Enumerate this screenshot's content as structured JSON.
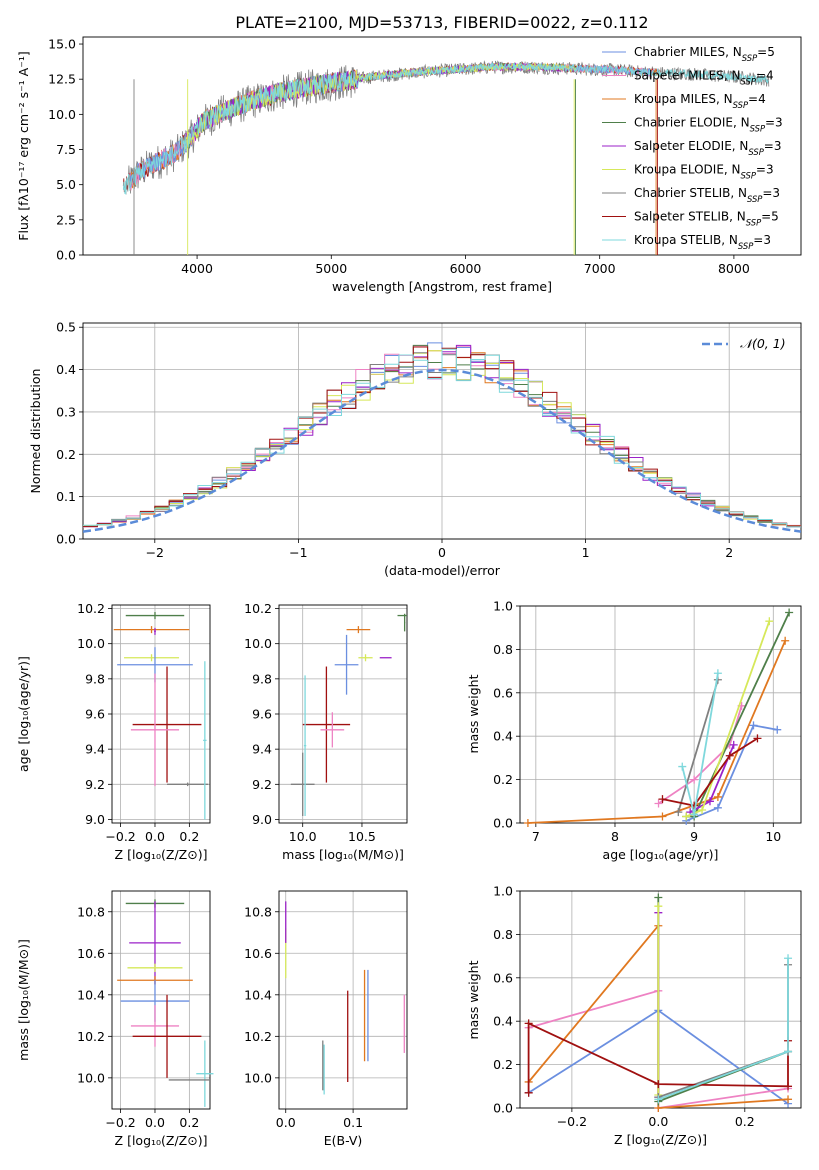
{
  "figure_title": "PLATE=2100, MJD=53713, FIBERID=0022, z=0.112",
  "colors": {
    "chabrier_miles": "#6b8fe0",
    "salpeter_miles": "#ee82c3",
    "kroupa_miles": "#e07820",
    "chabrier_elodie": "#4f7f4a",
    "salpeter_elodie": "#9b22c8",
    "kroupa_elodie": "#d6e85a",
    "chabrier_stelib": "#808080",
    "salpeter_stelib": "#a01010",
    "kroupa_stelib": "#7fd8dc",
    "normal_curve": "#5b8bd8"
  },
  "chart_data": [
    {
      "type": "line",
      "title": "PLATE=2100, MJD=53713, FIBERID=0022, z=0.112",
      "xlabel": "wavelength [Angstrom, rest frame]",
      "ylabel": "Flux [fλ10⁻¹⁷ erg cm⁻² s⁻¹ A⁻¹]",
      "xlim": [
        3150,
        8500
      ],
      "ylim": [
        0,
        15.5
      ],
      "xticks": [
        "4000",
        "5000",
        "6000",
        "7000",
        "8000"
      ],
      "yticks": [
        "0.0",
        "2.5",
        "5.0",
        "7.5",
        "10.0",
        "12.5",
        "15.0"
      ],
      "grid": false,
      "legend_position": "right",
      "continuum_x": [
        3450,
        3550,
        3650,
        3750,
        3850,
        3950,
        4050,
        4200,
        4400,
        4600,
        4800,
        5000,
        5300,
        5600,
        5900,
        6200,
        6500,
        6800,
        7100,
        7400,
        7700,
        8000,
        8250
      ],
      "continuum_y": [
        4.8,
        5.8,
        6.5,
        6.9,
        7.4,
        8.4,
        9.6,
        10.3,
        11.0,
        11.6,
        12.0,
        12.3,
        12.7,
        13.0,
        13.2,
        13.4,
        13.4,
        13.3,
        13.2,
        13.0,
        12.9,
        12.7,
        12.5
      ],
      "series": [
        {
          "name": "Chabrier MILES, N$_{SSP}$=5",
          "key": "chabrier_miles"
        },
        {
          "name": "Salpeter MILES, N$_{SSP}$=4",
          "key": "salpeter_miles"
        },
        {
          "name": "Kroupa MILES, N$_{SSP}$=4",
          "key": "kroupa_miles"
        },
        {
          "name": "Chabrier ELODIE, N$_{SSP}$=3",
          "key": "chabrier_elodie"
        },
        {
          "name": "Salpeter ELODIE, N$_{SSP}$=3",
          "key": "salpeter_elodie"
        },
        {
          "name": "Kroupa ELODIE, N$_{SSP}$=3",
          "key": "kroupa_elodie"
        },
        {
          "name": "Chabrier STELIB, N$_{SSP}$=3",
          "key": "chabrier_stelib"
        },
        {
          "name": "Salpeter STELIB, N$_{SSP}$=5",
          "key": "salpeter_stelib"
        },
        {
          "name": "Kroupa STELIB, N$_{SSP}$=3",
          "key": "kroupa_stelib"
        }
      ]
    },
    {
      "type": "line",
      "xlabel": "(data-model)/error",
      "ylabel": "Normed distribution",
      "xlim": [
        -2.5,
        2.5
      ],
      "ylim": [
        0,
        0.51
      ],
      "xticks": [
        "−2",
        "−1",
        "0",
        "1",
        "2"
      ],
      "yticks": [
        "0.0",
        "0.1",
        "0.2",
        "0.3",
        "0.4",
        "0.5"
      ],
      "grid": true,
      "legend_position": "top-right",
      "normal_label": "𝒩(0, 1)",
      "bin_width": 0.1
    },
    {
      "type": "scatter",
      "xlabel": "Z [log₁₀(Z/Z⊙)]",
      "ylabel": "age  [log₁₀(age/yr)]",
      "xlim": [
        -0.25,
        0.32
      ],
      "ylim": [
        8.98,
        10.22
      ],
      "xticks": [
        "−0.2",
        "0.0",
        "0.2"
      ],
      "yticks": [
        "9.0",
        "9.2",
        "9.4",
        "9.6",
        "9.8",
        "10.0",
        "10.2"
      ],
      "grid": true,
      "points": [
        {
          "key": "chabrier_elodie",
          "x": 0.0,
          "xerr": 0.17,
          "y": 10.16,
          "yerr": 0.02
        },
        {
          "key": "kroupa_miles",
          "x": -0.02,
          "xerr": 0.22,
          "y": 10.08,
          "yerr": 0.02
        },
        {
          "key": "kroupa_elodie",
          "x": -0.02,
          "xerr": 0.16,
          "y": 9.92,
          "yerr": 0.02
        },
        {
          "key": "chabrier_miles",
          "x": 0.0,
          "xerr": 0.22,
          "y": 9.88,
          "yerr": 0.1
        },
        {
          "key": "salpeter_stelib",
          "x": 0.07,
          "xerr": 0.2,
          "y": 9.54,
          "yerr": 0.33
        },
        {
          "key": "salpeter_miles",
          "x": 0.0,
          "xerr": 0.14,
          "y": 9.51,
          "yerr": 0.32
        },
        {
          "key": "chabrier_stelib",
          "x": 0.19,
          "xerr": 0.12,
          "y": 9.2,
          "yerr": 0.01
        },
        {
          "key": "kroupa_stelib",
          "x": 0.29,
          "xerr": 0.01,
          "y": 9.45,
          "yerr": 0.45
        },
        {
          "key": "salpeter_elodie",
          "x": 0.0,
          "xerr": 0.005,
          "y": 10.07,
          "yerr": 0.02
        }
      ]
    },
    {
      "type": "scatter",
      "xlabel": "mass [log₁₀(M/M⊙)]",
      "ylabel": "",
      "xlim": [
        9.8,
        10.88
      ],
      "ylim": [
        8.98,
        10.22
      ],
      "xticks": [
        "10.0",
        "10.5"
      ],
      "yticks": [
        "9.0",
        "9.2",
        "9.4",
        "9.6",
        "9.8",
        "10.0",
        "10.2"
      ],
      "grid": true,
      "points": [
        {
          "key": "chabrier_elodie",
          "x": 10.84,
          "xerr": 0.04,
          "y": 10.16,
          "yerr": 0.0
        },
        {
          "key": "chabrier_elodie",
          "x": 10.86,
          "xerr": 0.005,
          "y": 10.12,
          "yerr": 0.05
        },
        {
          "key": "kroupa_miles",
          "x": 10.47,
          "xerr": 0.1,
          "y": 10.08,
          "yerr": 0.02
        },
        {
          "key": "kroupa_elodie",
          "x": 10.53,
          "xerr": 0.06,
          "y": 9.92,
          "yerr": 0.02
        },
        {
          "key": "salpeter_elodie",
          "x": 10.7,
          "xerr": 0.05,
          "y": 9.92,
          "yerr": 0.0
        },
        {
          "key": "chabrier_miles",
          "x": 10.37,
          "xerr": 0.1,
          "y": 9.88,
          "yerr": 0.17
        },
        {
          "key": "salpeter_stelib",
          "x": 10.2,
          "xerr": 0.2,
          "y": 9.54,
          "yerr": 0.33
        },
        {
          "key": "salpeter_miles",
          "x": 10.25,
          "xerr": 0.1,
          "y": 9.51,
          "yerr": 0.1
        },
        {
          "key": "chabrier_stelib",
          "x": 10.0,
          "xerr": 0.1,
          "y": 9.2,
          "yerr": 0.18
        },
        {
          "key": "kroupa_stelib",
          "x": 10.02,
          "xerr": 0.01,
          "y": 9.42,
          "yerr": 0.4
        }
      ]
    },
    {
      "type": "line",
      "xlabel": "age  [log₁₀(age/yr)]",
      "ylabel": "mass weight",
      "xlim": [
        6.8,
        10.35
      ],
      "ylim": [
        0,
        1.0
      ],
      "xticks": [
        "7",
        "8",
        "9",
        "10"
      ],
      "yticks": [
        "0.0",
        "0.2",
        "0.4",
        "0.6",
        "0.8",
        "1.0"
      ],
      "grid": true,
      "series": [
        {
          "key": "chabrier_miles",
          "x": [
            8.9,
            9.3,
            9.75,
            10.05
          ],
          "y": [
            0.01,
            0.07,
            0.45,
            0.43
          ]
        },
        {
          "key": "salpeter_miles",
          "x": [
            8.55,
            9.0,
            9.45,
            9.6
          ],
          "y": [
            0.09,
            0.2,
            0.36,
            0.54
          ]
        },
        {
          "key": "kroupa_miles",
          "x": [
            6.9,
            8.6,
            9.3,
            10.15
          ],
          "y": [
            0.0,
            0.03,
            0.12,
            0.84
          ]
        },
        {
          "key": "chabrier_elodie",
          "x": [
            8.9,
            9.0,
            10.2
          ],
          "y": [
            0.03,
            0.03,
            0.97
          ]
        },
        {
          "key": "salpeter_elodie",
          "x": [
            8.95,
            9.2,
            9.5
          ],
          "y": [
            0.05,
            0.1,
            0.36
          ]
        },
        {
          "key": "kroupa_elodie",
          "x": [
            8.9,
            9.1,
            9.95
          ],
          "y": [
            0.03,
            0.06,
            0.93
          ]
        },
        {
          "key": "chabrier_stelib",
          "x": [
            8.8,
            9.3
          ],
          "y": [
            0.05,
            0.66
          ]
        },
        {
          "key": "salpeter_stelib",
          "x": [
            8.6,
            9.0,
            9.45,
            9.8
          ],
          "y": [
            0.11,
            0.08,
            0.31,
            0.39
          ]
        },
        {
          "key": "kroupa_stelib",
          "x": [
            8.85,
            9.0,
            9.3
          ],
          "y": [
            0.26,
            0.04,
            0.69
          ]
        }
      ]
    },
    {
      "type": "scatter",
      "xlabel": "Z [log₁₀(Z/Z⊙)]",
      "ylabel": "mass [log₁₀(M/M⊙)]",
      "xlim": [
        -0.25,
        0.32
      ],
      "ylim": [
        9.85,
        10.9
      ],
      "xticks": [
        "−0.2",
        "0.0",
        "0.2"
      ],
      "yticks": [
        "10.0",
        "10.2",
        "10.4",
        "10.6",
        "10.8"
      ],
      "grid": true,
      "points": [
        {
          "key": "chabrier_elodie",
          "x": 0.0,
          "xerr": 0.17,
          "y": 10.84,
          "yerr": 0.02
        },
        {
          "key": "salpeter_elodie",
          "x": 0.0,
          "xerr": 0.15,
          "y": 10.65,
          "yerr": 0.2
        },
        {
          "key": "kroupa_elodie",
          "x": 0.0,
          "xerr": 0.16,
          "y": 10.53,
          "yerr": 0.02
        },
        {
          "key": "kroupa_miles",
          "x": 0.0,
          "xerr": 0.22,
          "y": 10.47,
          "yerr": 0.02
        },
        {
          "key": "chabrier_miles",
          "x": 0.0,
          "xerr": 0.2,
          "y": 10.37,
          "yerr": 0.1
        },
        {
          "key": "salpeter_miles",
          "x": 0.0,
          "xerr": 0.14,
          "y": 10.25,
          "yerr": 0.1
        },
        {
          "key": "salpeter_stelib",
          "x": 0.07,
          "xerr": 0.2,
          "y": 10.2,
          "yerr": 0.2
        },
        {
          "key": "kroupa_stelib",
          "x": 0.29,
          "xerr": 0.05,
          "y": 10.02,
          "yerr": 0.16
        },
        {
          "key": "chabrier_stelib",
          "x": 0.2,
          "xerr": 0.12,
          "y": 9.99,
          "yerr": 0.0
        }
      ]
    },
    {
      "type": "scatter",
      "xlabel": "E(B-V)",
      "ylabel": "",
      "xlim": [
        -0.01,
        0.18
      ],
      "ylim": [
        9.85,
        10.9
      ],
      "xticks": [
        "0.0",
        "0.1"
      ],
      "yticks": [
        "10.0",
        "10.2",
        "10.4",
        "10.6",
        "10.8"
      ],
      "grid": true,
      "points": [
        {
          "key": "kroupa_elodie",
          "x": 0.0,
          "y": 10.6,
          "yerr": 0.12
        },
        {
          "key": "salpeter_elodie",
          "x": 0.0,
          "y": 10.75,
          "yerr": 0.1
        },
        {
          "key": "chabrier_stelib",
          "x": 0.055,
          "y": 10.06,
          "yerr": 0.12
        },
        {
          "key": "kroupa_stelib",
          "x": 0.057,
          "y": 10.04,
          "yerr": 0.12
        },
        {
          "key": "salpeter_stelib",
          "x": 0.092,
          "y": 10.2,
          "yerr": 0.22
        },
        {
          "key": "kroupa_miles",
          "x": 0.117,
          "y": 10.3,
          "yerr": 0.22
        },
        {
          "key": "chabrier_miles",
          "x": 0.122,
          "y": 10.3,
          "yerr": 0.22
        },
        {
          "key": "salpeter_miles",
          "x": 0.176,
          "y": 10.26,
          "yerr": 0.14
        }
      ]
    },
    {
      "type": "line",
      "xlabel": "Z [log₁₀(Z/Z⊙)]",
      "ylabel": "mass weight",
      "xlim": [
        -0.32,
        0.33
      ],
      "ylim": [
        0,
        1.0
      ],
      "xticks": [
        "−0.2",
        "0.0",
        "0.2"
      ],
      "yticks": [
        "0.0",
        "0.2",
        "0.4",
        "0.6",
        "0.8",
        "1.0"
      ],
      "grid": true,
      "series": [
        {
          "key": "chabrier_miles",
          "x": [
            -0.3,
            0.0,
            0.3
          ],
          "y": [
            0.07,
            0.45,
            0.02
          ]
        },
        {
          "key": "salpeter_miles",
          "x": [
            -0.3,
            0.0,
            0.0,
            0.3
          ],
          "y": [
            0.37,
            0.54,
            0.0,
            0.09
          ]
        },
        {
          "key": "kroupa_miles",
          "x": [
            -0.3,
            0.0,
            0.0,
            0.3
          ],
          "y": [
            0.12,
            0.84,
            0.0,
            0.04
          ]
        },
        {
          "key": "chabrier_elodie",
          "x": [
            0.0,
            0.0,
            0.3
          ],
          "y": [
            0.97,
            0.03,
            0.26
          ]
        },
        {
          "key": "salpeter_elodie",
          "x": [
            0.0,
            0.0
          ],
          "y": [
            0.9,
            0.05
          ]
        },
        {
          "key": "kroupa_elodie",
          "x": [
            0.0,
            0.0
          ],
          "y": [
            0.93,
            0.06
          ]
        },
        {
          "key": "chabrier_stelib",
          "x": [
            0.0,
            0.3,
            0.3
          ],
          "y": [
            0.05,
            0.26,
            0.66
          ]
        },
        {
          "key": "salpeter_stelib",
          "x": [
            -0.3,
            -0.3,
            0.0,
            0.3,
            0.3
          ],
          "y": [
            0.07,
            0.39,
            0.11,
            0.1,
            0.31
          ]
        },
        {
          "key": "kroupa_stelib",
          "x": [
            0.0,
            0.3,
            0.3
          ],
          "y": [
            0.04,
            0.26,
            0.69
          ]
        }
      ]
    }
  ]
}
